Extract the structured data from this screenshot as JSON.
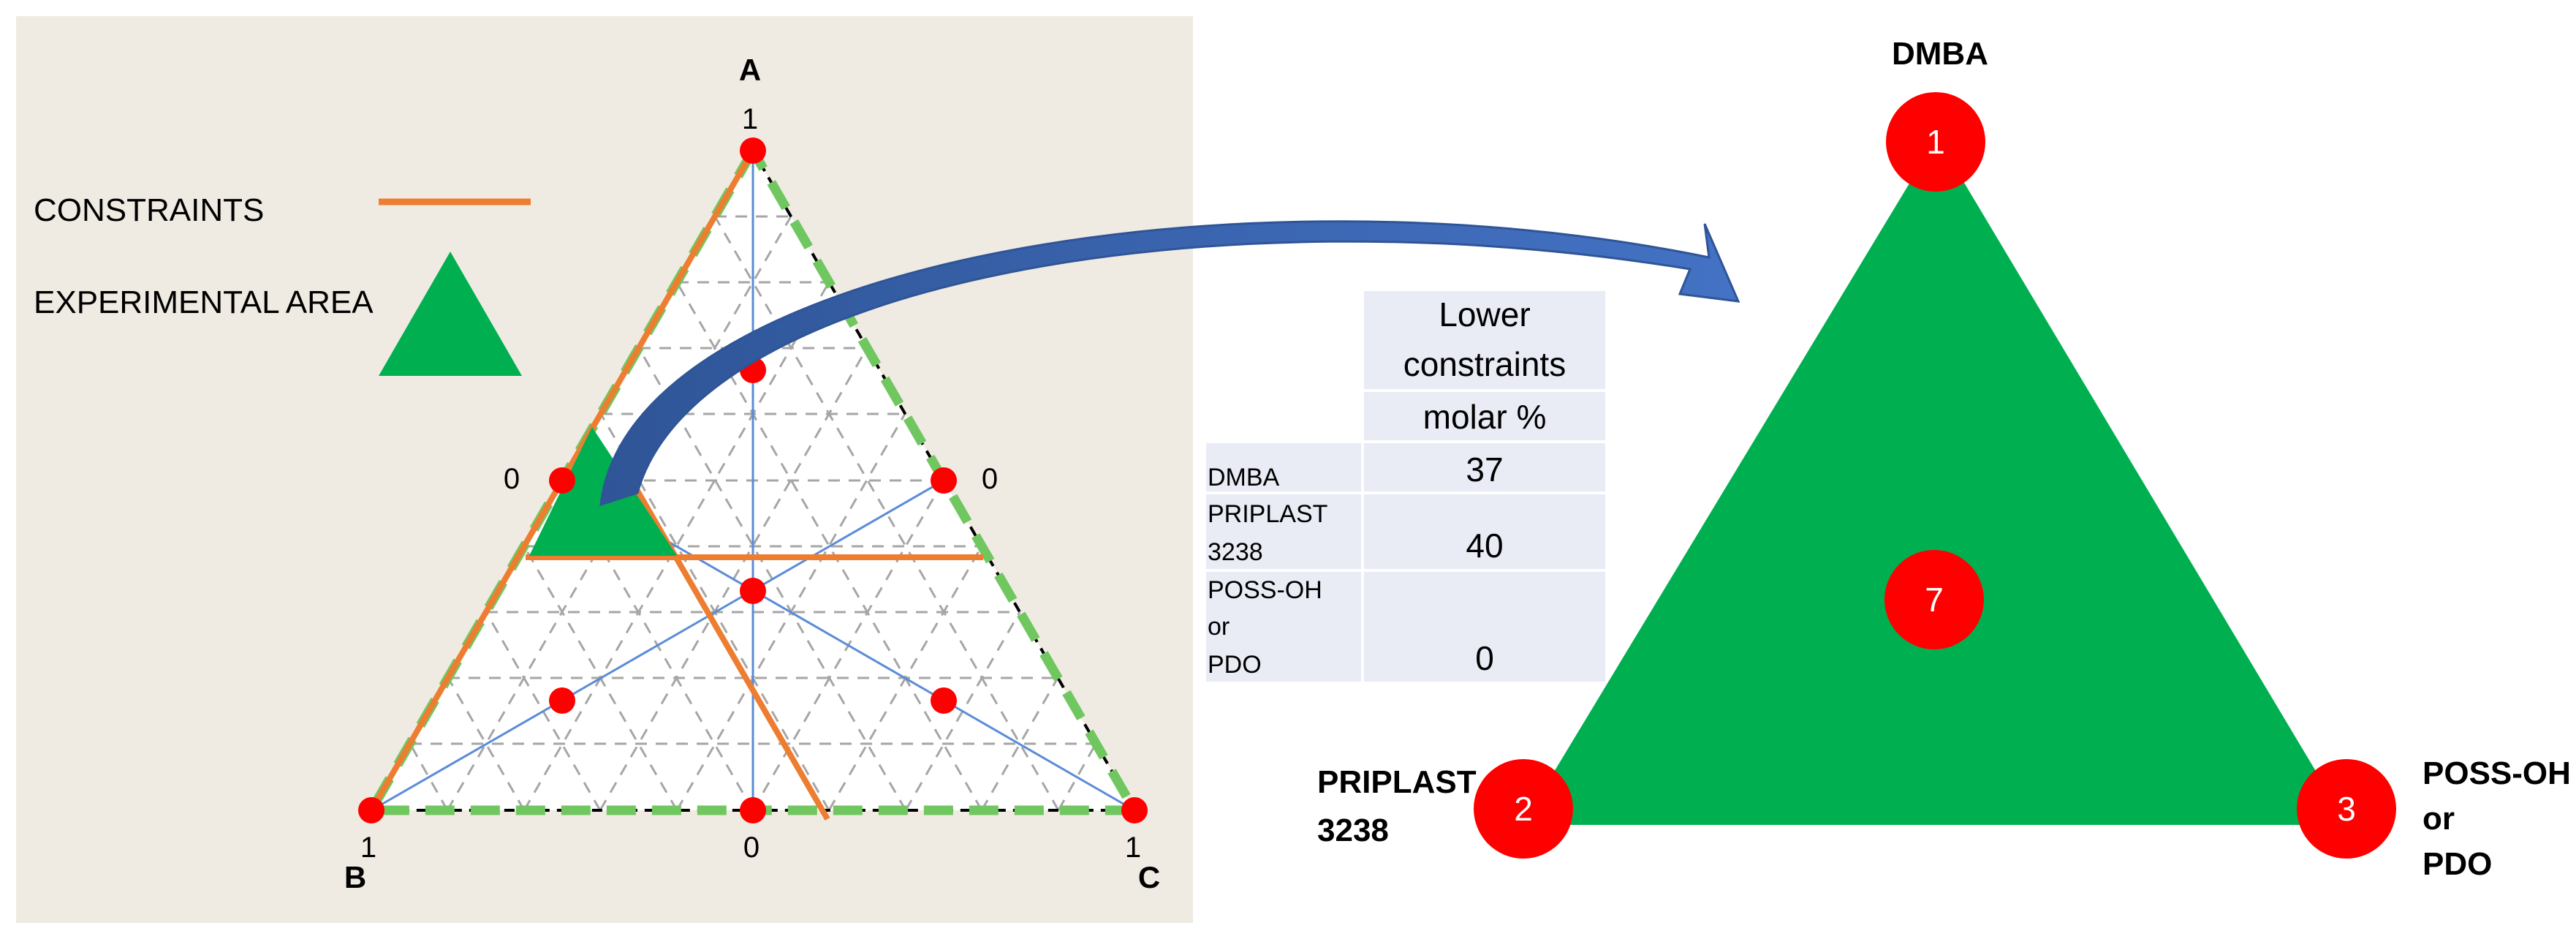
{
  "left_panel": {
    "legend": {
      "constraints_label": "CONSTRAINTS",
      "experimental_area_label": "EXPERIMENTAL AREA",
      "constraint_color": "#ed7d31",
      "area_color": "#00b050"
    },
    "ternary": {
      "vertex_a": "A",
      "vertex_b": "B",
      "vertex_c": "C",
      "tick_a_top": "1",
      "tick_left_mid": "0",
      "tick_right_mid": "0",
      "tick_b": "1",
      "tick_bottom_mid": "0",
      "tick_c": "1"
    },
    "background_color": "#efebe2"
  },
  "table": {
    "header_line1": "Lower",
    "header_line2": "constraints",
    "header_line3": "molar %",
    "rows": [
      {
        "label_lines": [
          "DMBA"
        ],
        "value": "37"
      },
      {
        "label_lines": [
          "PRIPLAST",
          "3238"
        ],
        "value": "40"
      },
      {
        "label_lines": [
          "POSS-OH",
          "or",
          "PDO"
        ],
        "value": "0"
      }
    ],
    "cell_color": "#e9ebf5"
  },
  "right_panel": {
    "top_label": "DMBA",
    "left_label_line1": "PRIPLAST",
    "left_label_line2": "3238",
    "right_label_line1": "POSS-OH",
    "right_label_line2": "or",
    "right_label_line3": "PDO",
    "points": [
      "1",
      "2",
      "3",
      "7"
    ],
    "triangle_color": "#00b050",
    "point_color": "#ff0000",
    "arrow_color": "#4472c4"
  }
}
